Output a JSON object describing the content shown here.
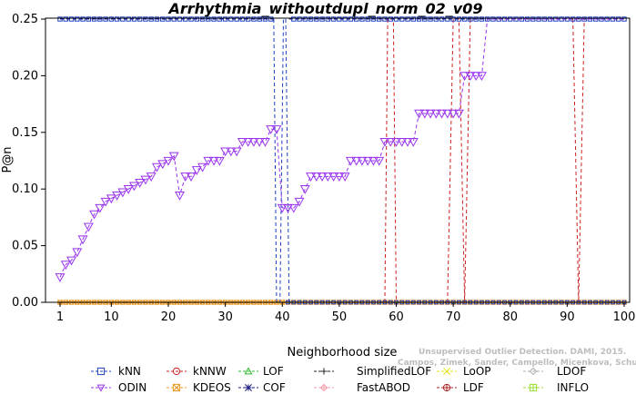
{
  "chart_data": {
    "type": "line",
    "title": "Arrhythmia_withoutdupl_norm_02_v09",
    "xlabel": "Neighborhood size",
    "ylabel": "P@n",
    "xlim": [
      1,
      100
    ],
    "ylim": [
      0,
      0.25
    ],
    "xticks": [
      "1",
      "10",
      "20",
      "30",
      "40",
      "50",
      "60",
      "70",
      "80",
      "90",
      "100"
    ],
    "yticks": [
      "0.00",
      "0.05",
      "0.10",
      "0.15",
      "0.20",
      "0.25"
    ],
    "watermark": "Campos, Zimek, Sander, Campello, Micenkova, Schubert, Assent, Houle",
    "watermark2": "Unsupervised Outlier Detection. DAMI, 2015.",
    "legend": [
      {
        "name": "kNN",
        "color": "#1f3fbf",
        "marker": "square"
      },
      {
        "name": "kNNW",
        "color": "#cc2222",
        "marker": "circle"
      },
      {
        "name": "LOF",
        "color": "#2eb82e",
        "marker": "triangle"
      },
      {
        "name": "SimplifiedLOF",
        "color": "#222222",
        "marker": "plus"
      },
      {
        "name": "LoOP",
        "color": "#e6e619",
        "marker": "x"
      },
      {
        "name": "LDOF",
        "color": "#aaaaaa",
        "marker": "diamond"
      },
      {
        "name": "ODIN",
        "color": "#9933ee",
        "marker": "triangle-down"
      },
      {
        "name": "KDEOS",
        "color": "#ee9922",
        "marker": "square-x"
      },
      {
        "name": "COF",
        "color": "#1a1a80",
        "marker": "star"
      },
      {
        "name": "FastABOD",
        "color": "#f4a0b0",
        "marker": "diamond-plus"
      },
      {
        "name": "LDF",
        "color": "#aa2222",
        "marker": "circle-plus"
      },
      {
        "name": "INFLO",
        "color": "#99dd33",
        "marker": "square-hash"
      }
    ],
    "series": [
      {
        "name": "ODIN",
        "color": "#9933ee",
        "x": [
          1,
          2,
          3,
          4,
          5,
          6,
          7,
          8,
          9,
          10,
          11,
          12,
          13,
          14,
          15,
          16,
          17,
          18,
          19,
          20,
          21,
          22,
          23,
          24,
          25,
          26,
          27,
          28,
          29,
          30,
          31,
          32,
          33,
          34,
          35,
          36,
          37,
          38,
          39,
          40,
          41,
          42,
          43,
          44,
          45,
          46,
          47,
          48,
          49,
          50,
          51,
          52,
          53,
          54,
          55,
          56,
          57,
          58,
          59,
          60,
          61,
          62,
          63,
          64,
          65,
          66,
          67,
          68,
          69,
          70,
          71,
          72,
          73,
          74,
          75,
          76,
          77,
          78,
          79,
          80,
          81,
          82,
          83,
          84,
          85,
          86,
          87,
          88,
          89,
          90,
          91,
          92,
          93,
          94,
          95,
          96,
          97,
          98,
          99,
          100
        ],
        "y": [
          0.0222,
          0.0333,
          0.037,
          0.0444,
          0.0556,
          0.0667,
          0.0778,
          0.0833,
          0.0889,
          0.0917,
          0.0944,
          0.0972,
          0.1,
          0.1028,
          0.1056,
          0.1083,
          0.1111,
          0.1194,
          0.1222,
          0.125,
          0.1292,
          0.0944,
          0.1111,
          0.1111,
          0.1167,
          0.1194,
          0.125,
          0.125,
          0.125,
          0.1333,
          0.1333,
          0.1333,
          0.1417,
          0.1417,
          0.1417,
          0.1417,
          0.1417,
          0.1528,
          0.1528,
          0.0833,
          0.0833,
          0.0833,
          0.0889,
          0.1,
          0.1111,
          0.1111,
          0.1111,
          0.1111,
          0.1111,
          0.1111,
          0.1111,
          0.125,
          0.125,
          0.125,
          0.125,
          0.125,
          0.125,
          0.1417,
          0.1417,
          0.1417,
          0.1417,
          0.1417,
          0.1417,
          0.1667,
          0.1667,
          0.1667,
          0.1667,
          0.1667,
          0.1667,
          0.1667,
          0.1667,
          0.2,
          0.2,
          0.2,
          0.2,
          0.25,
          0.25,
          0.25,
          0.25,
          0.25,
          0.25,
          0.25,
          0.25,
          0.25,
          0.25,
          0.25,
          0.25,
          0.25,
          0.25,
          0.25,
          0.25,
          0.25,
          0.25,
          0.25,
          0.25,
          0.25,
          0.25,
          0.25,
          0.25,
          0.25
        ]
      },
      {
        "name": "kNN",
        "color": "#1f3fbf",
        "segments": [
          {
            "x": [
              1,
              38.5
            ],
            "y": [
              0.25,
              0.25
            ]
          },
          {
            "x": [
              38.5,
              39,
              39.6,
              40.2,
              40.6
            ],
            "y": [
              0.25,
              0.0,
              0.0,
              0.25,
              0.25
            ]
          },
          {
            "x": [
              40.6,
              41.2
            ],
            "y": [
              0.25,
              0.0
            ]
          },
          {
            "x": [
              41.2,
              100
            ],
            "y": [
              0.0,
              0.0
            ]
          }
        ]
      },
      {
        "name": "COF",
        "color": "#1a1a80",
        "segments": [
          {
            "x": [
              1,
              38.5
            ],
            "y": [
              0.25,
              0.25
            ]
          },
          {
            "x": [
              41.2,
              100
            ],
            "y": [
              0.25,
              0.25
            ]
          }
        ]
      },
      {
        "name": "kNNW",
        "color": "#cc2222",
        "segments": [
          {
            "x": [
              1,
              58
            ],
            "y": [
              0.0,
              0.0
            ]
          },
          {
            "x": [
              58,
              58.5,
              59.5,
              60,
              60
            ],
            "y": [
              0.0,
              0.25,
              0.25,
              0.0,
              0.0
            ]
          },
          {
            "x": [
              69,
              70,
              71,
              72
            ],
            "y": [
              0.0,
              0.25,
              0.25,
              0.0
            ]
          },
          {
            "x": [
              72,
              73,
              74
            ],
            "y": [
              0.0,
              0.25,
              0.25
            ]
          },
          {
            "x": [
              91,
              92,
              93
            ],
            "y": [
              0.25,
              0.0,
              0.25
            ]
          }
        ]
      },
      {
        "name": "KDEOS",
        "color": "#ee9922",
        "y_const": 0.0
      },
      {
        "name": "LDF",
        "color": "#aa2222",
        "y_const": 0.0
      },
      {
        "name": "LOF",
        "color": "#2eb82e",
        "y_const": 0.0
      },
      {
        "name": "SimplifiedLOF",
        "color": "#222222",
        "y_const": 0.0
      },
      {
        "name": "LoOP",
        "color": "#e6e619",
        "y_const": 0.0
      },
      {
        "name": "LDOF",
        "color": "#aaaaaa",
        "y_const": 0.0
      },
      {
        "name": "FastABOD",
        "color": "#f4a0b0",
        "y_const": 0.0
      },
      {
        "name": "INFLO",
        "color": "#99dd33",
        "y_const": 0.0
      }
    ]
  }
}
